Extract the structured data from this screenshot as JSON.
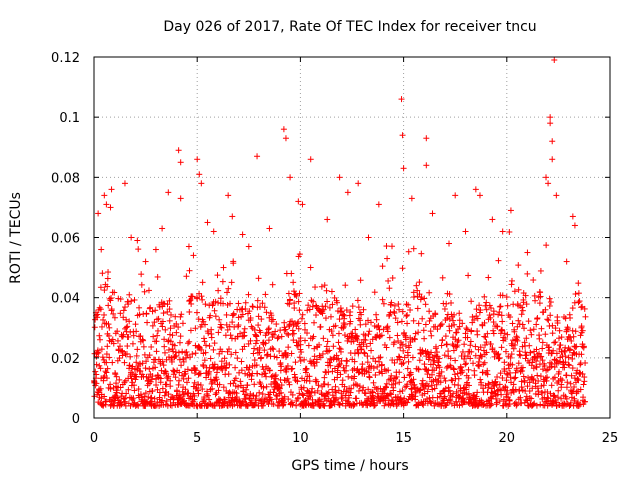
{
  "chart_data": {
    "type": "scatter",
    "title": "Day 026 of 2017, Rate Of TEC Index for receiver tncu",
    "xlabel": "GPS time / hours",
    "ylabel": "ROTI / TECUs",
    "xlim": [
      0,
      25
    ],
    "ylim": [
      0,
      0.12
    ],
    "xticks": [
      0,
      5,
      10,
      15,
      20,
      25
    ],
    "yticks": [
      0,
      0.02,
      0.04,
      0.06,
      0.08,
      0.1,
      0.12
    ],
    "xtick_labels": [
      "0",
      "5",
      "10",
      "15",
      "20",
      "25"
    ],
    "ytick_labels": [
      "0",
      "0.02",
      "0.04",
      "0.06",
      "0.08",
      "0.1",
      "0.12"
    ],
    "grid": true,
    "marker": "+",
    "color": "#ff0000",
    "data_range": [
      0,
      23.8
    ],
    "series": [
      {
        "name": "ROTI",
        "points": [
          [
            0.02,
            0.012
          ],
          [
            0.1,
            0.034
          ],
          [
            0.2,
            0.068
          ],
          [
            0.35,
            0.056
          ],
          [
            0.5,
            0.074
          ],
          [
            0.6,
            0.071
          ],
          [
            0.8,
            0.07
          ],
          [
            0.85,
            0.076
          ],
          [
            1.5,
            0.078
          ],
          [
            1.8,
            0.06
          ],
          [
            2.1,
            0.059
          ],
          [
            2.5,
            0.052
          ],
          [
            3.0,
            0.056
          ],
          [
            3.3,
            0.063
          ],
          [
            3.6,
            0.075
          ],
          [
            4.1,
            0.089
          ],
          [
            4.2,
            0.085
          ],
          [
            4.2,
            0.073
          ],
          [
            4.6,
            0.057
          ],
          [
            5.0,
            0.086
          ],
          [
            5.1,
            0.081
          ],
          [
            5.2,
            0.078
          ],
          [
            5.5,
            0.065
          ],
          [
            5.8,
            0.062
          ],
          [
            6.5,
            0.074
          ],
          [
            6.7,
            0.067
          ],
          [
            7.2,
            0.061
          ],
          [
            7.5,
            0.057
          ],
          [
            7.9,
            0.087
          ],
          [
            8.5,
            0.063
          ],
          [
            9.2,
            0.096
          ],
          [
            9.3,
            0.093
          ],
          [
            9.5,
            0.08
          ],
          [
            9.9,
            0.072
          ],
          [
            10.1,
            0.071
          ],
          [
            10.5,
            0.086
          ],
          [
            11.3,
            0.066
          ],
          [
            11.9,
            0.08
          ],
          [
            12.3,
            0.075
          ],
          [
            12.8,
            0.078
          ],
          [
            13.3,
            0.06
          ],
          [
            13.8,
            0.071
          ],
          [
            14.2,
            0.053
          ],
          [
            14.9,
            0.106
          ],
          [
            14.95,
            0.094
          ],
          [
            15.0,
            0.083
          ],
          [
            15.4,
            0.073
          ],
          [
            16.1,
            0.093
          ],
          [
            16.1,
            0.084
          ],
          [
            16.4,
            0.068
          ],
          [
            17.2,
            0.058
          ],
          [
            17.5,
            0.074
          ],
          [
            18.0,
            0.062
          ],
          [
            18.5,
            0.076
          ],
          [
            18.7,
            0.074
          ],
          [
            19.3,
            0.066
          ],
          [
            19.8,
            0.062
          ],
          [
            20.2,
            0.069
          ],
          [
            21.0,
            0.055
          ],
          [
            21.9,
            0.08
          ],
          [
            22.0,
            0.078
          ],
          [
            22.1,
            0.1
          ],
          [
            22.1,
            0.098
          ],
          [
            22.2,
            0.092
          ],
          [
            22.2,
            0.086
          ],
          [
            22.3,
            0.119
          ],
          [
            22.4,
            0.074
          ],
          [
            22.9,
            0.052
          ],
          [
            23.2,
            0.067
          ],
          [
            23.3,
            0.064
          ]
        ]
      }
    ]
  }
}
